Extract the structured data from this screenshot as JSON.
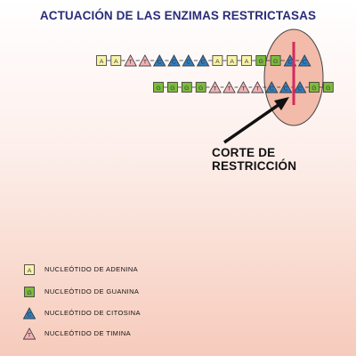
{
  "title": "ACTUACIÓN DE LAS ENZIMAS RESTRICTASAS",
  "cut_label": "CORTE DE RESTRICCIÓN",
  "colors": {
    "A": "#f8f3a8",
    "G": "#7dbb3d",
    "C": "#2f7fc1",
    "T": "#f2b1b5",
    "enzyme_fill": "#f2bbaa",
    "cut_line": "#d62a5c",
    "title": "#2a2c7a"
  },
  "strand_top": [
    "A",
    "A",
    "T",
    "T",
    "C",
    "C",
    "C",
    "C",
    "A",
    "A",
    "A",
    "G",
    "G",
    "C",
    "C"
  ],
  "strand_bottom": [
    "G",
    "G",
    "G",
    "G",
    "T",
    "T",
    "T",
    "T",
    "C",
    "C",
    "C",
    "G",
    "G"
  ],
  "legend": [
    {
      "base": "A",
      "label": "NUCLEÓTIDO DE ADENINA",
      "icon": "square-A-icon"
    },
    {
      "base": "G",
      "label": "NUCLEÓTIDO DE GUANINA",
      "icon": "square-G-icon"
    },
    {
      "base": "C",
      "label": "NUCLEÓTIDO DE CITOSINA",
      "icon": "triangle-C-icon"
    },
    {
      "base": "T",
      "label": "NUCLEÓTIDO DE TIMINA",
      "icon": "triangle-T-icon"
    }
  ]
}
